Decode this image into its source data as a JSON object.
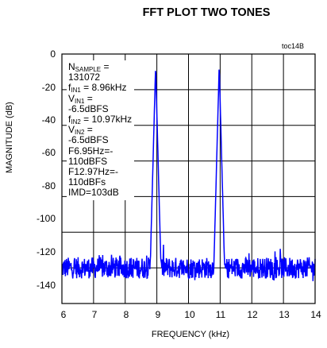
{
  "chart_data": {
    "type": "line",
    "title": "FFT PLOT TWO TONES",
    "tag": "toc14B",
    "xlabel": "FREQUENCY (kHz)",
    "ylabel": "MAGNITUDE (dB)",
    "xlim": [
      6,
      14
    ],
    "ylim": [
      -140,
      0
    ],
    "xticks": [
      6,
      7,
      8,
      9,
      10,
      11,
      12,
      13,
      14
    ],
    "yticks": [
      0,
      -20,
      -40,
      -60,
      -80,
      -100,
      -120,
      -140
    ],
    "grid": true,
    "line_color": "#0000ff",
    "noise_floor_db": -120,
    "peaks": [
      {
        "x": 8.96,
        "y": -6.5
      },
      {
        "x": 10.97,
        "y": -6.5
      }
    ],
    "annotations": {
      "n_sample": {
        "label": "N",
        "sub": "SAMPLE",
        "suffix": " =",
        "value": "131072"
      },
      "fin1": {
        "label": "f",
        "sub": "IN1",
        "suffix": " = 8.96kHz"
      },
      "vin1": {
        "label": "V",
        "sub": "IN1",
        "suffix": " =",
        "value": "-6.5dBFS"
      },
      "fin2": {
        "label": "f",
        "sub": "IN2",
        "suffix": " = 10.97kHz"
      },
      "vin2": {
        "label": "V",
        "sub": "IN2",
        "suffix": " =",
        "value": "-6.5dBFS"
      },
      "f1_line1": "F6.95Hz=-",
      "f1_line2": "110dBFS",
      "f2_line1": "F12.97Hz=-",
      "f2_line2": "110dBFs",
      "imd": "IMD=103dB"
    }
  }
}
